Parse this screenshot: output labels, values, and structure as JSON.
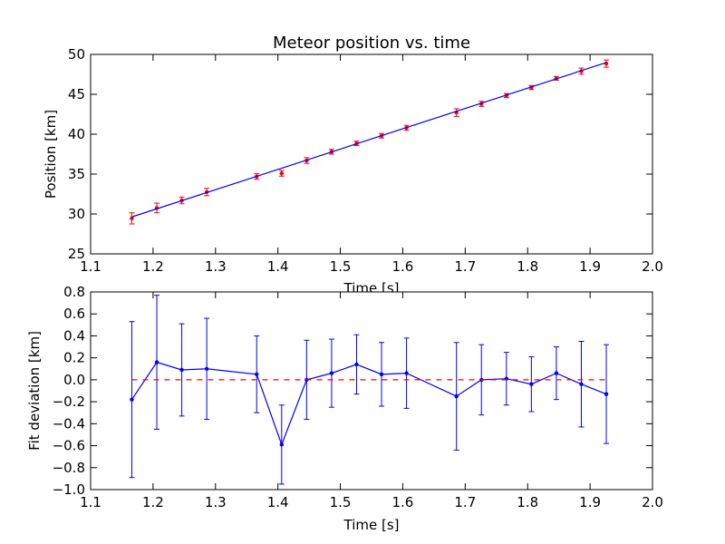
{
  "chart_data": [
    {
      "type": "line",
      "title": "Meteor position vs. time",
      "xlabel": "Time [s]",
      "ylabel": "Position [km]",
      "xlim": [
        1.1,
        2.0
      ],
      "ylim": [
        25,
        50
      ],
      "xticks": [
        "1.1",
        "1.2",
        "1.3",
        "1.4",
        "1.5",
        "1.6",
        "1.7",
        "1.8",
        "1.9",
        "2.0"
      ],
      "yticks": [
        "25",
        "30",
        "35",
        "40",
        "45",
        "50"
      ],
      "grid": false,
      "series": [
        {
          "kind": "errorbar",
          "color": "#ff0000",
          "x": [
            1.166,
            1.206,
            1.246,
            1.286,
            1.366,
            1.406,
            1.446,
            1.486,
            1.526,
            1.566,
            1.606,
            1.686,
            1.726,
            1.766,
            1.806,
            1.846,
            1.886,
            1.926
          ],
          "y": [
            29.45,
            30.75,
            31.7,
            32.75,
            34.7,
            35.1,
            36.7,
            37.8,
            38.85,
            39.8,
            40.8,
            42.7,
            43.8,
            44.85,
            45.85,
            47.0,
            47.9,
            48.85
          ],
          "yerr": [
            0.7,
            0.6,
            0.42,
            0.46,
            0.35,
            0.36,
            0.36,
            0.3,
            0.27,
            0.29,
            0.32,
            0.49,
            0.32,
            0.25,
            0.25,
            0.24,
            0.39,
            0.45
          ]
        },
        {
          "kind": "fit-line",
          "color": "#0000ff",
          "x": [
            1.166,
            1.926
          ],
          "y": [
            29.63,
            48.98
          ]
        }
      ]
    },
    {
      "type": "line",
      "title": "",
      "xlabel": "Time [s]",
      "ylabel": "Fit deviation [km]",
      "xlim": [
        1.1,
        2.0
      ],
      "ylim": [
        -1.0,
        0.8
      ],
      "xticks": [
        "1.1",
        "1.2",
        "1.3",
        "1.4",
        "1.5",
        "1.6",
        "1.7",
        "1.8",
        "1.9",
        "2.0"
      ],
      "yticks": [
        "−1.0",
        "−0.8",
        "−0.6",
        "−0.4",
        "−0.2",
        "0.0",
        "0.2",
        "0.4",
        "0.6",
        "0.8"
      ],
      "grid": false,
      "series": [
        {
          "kind": "errorbar-line",
          "color": "#0000ff",
          "x": [
            1.166,
            1.206,
            1.246,
            1.286,
            1.366,
            1.406,
            1.446,
            1.486,
            1.526,
            1.566,
            1.606,
            1.686,
            1.726,
            1.766,
            1.806,
            1.846,
            1.886,
            1.926
          ],
          "y": [
            -0.18,
            0.16,
            0.09,
            0.1,
            0.05,
            -0.59,
            0.0,
            0.06,
            0.14,
            0.05,
            0.06,
            -0.15,
            0.0,
            0.01,
            -0.04,
            0.06,
            -0.04,
            -0.13
          ],
          "yerr": [
            0.71,
            0.61,
            0.42,
            0.46,
            0.35,
            0.36,
            0.36,
            0.31,
            0.27,
            0.29,
            0.32,
            0.49,
            0.32,
            0.24,
            0.25,
            0.24,
            0.39,
            0.45
          ]
        },
        {
          "kind": "reference-line",
          "color": "#ff0000",
          "x": [
            1.166,
            1.926
          ],
          "y": [
            0.0,
            0.0
          ]
        }
      ]
    }
  ]
}
